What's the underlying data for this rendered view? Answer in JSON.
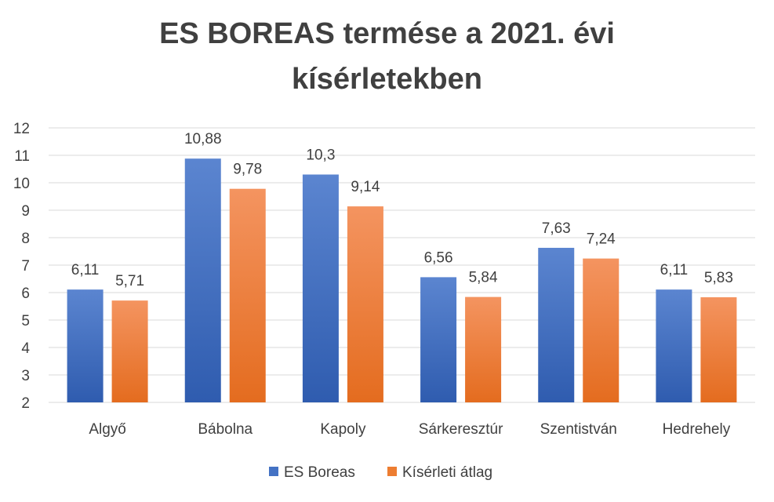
{
  "chart_data": {
    "type": "bar",
    "title": "ES BOREAS termése a 2021. évi kísérletekben",
    "title_lines": [
      "ES BOREAS termése a 2021. évi",
      "kísérletekben"
    ],
    "categories": [
      "Algyő",
      "Bábolna",
      "Kapoly",
      "Sárkeresztúr",
      "Szentistván",
      "Hedrehely"
    ],
    "series": [
      {
        "name": "ES Boreas",
        "values": [
          6.11,
          10.88,
          10.3,
          6.56,
          7.63,
          6.11
        ],
        "labels": [
          "6,11",
          "10,88",
          "10,3",
          "6,56",
          "7,63",
          "6,11"
        ],
        "color": "#4472C4"
      },
      {
        "name": "Kísérleti átlag",
        "values": [
          5.71,
          9.78,
          9.14,
          5.84,
          7.24,
          5.83
        ],
        "labels": [
          "5,71",
          "9,78",
          "9,14",
          "5,84",
          "7,24",
          "5,83"
        ],
        "color": "#ED7D31"
      }
    ],
    "ylim": [
      2,
      12
    ],
    "yticks": [
      2,
      3,
      4,
      5,
      6,
      7,
      8,
      9,
      10,
      11,
      12
    ],
    "grid": true,
    "legend": "bottom"
  }
}
